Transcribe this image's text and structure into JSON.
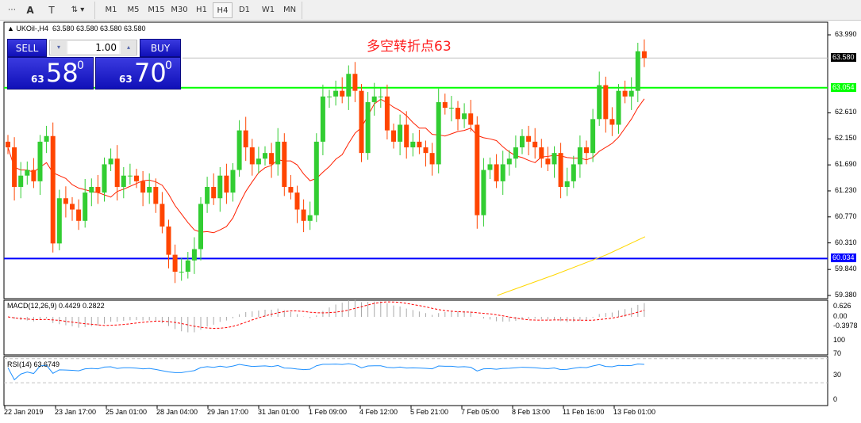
{
  "toolbar": {
    "tools": [
      "fibo-fan",
      "text",
      "text-label",
      "arrows"
    ],
    "timeframes": [
      "M1",
      "M5",
      "M15",
      "M30",
      "H1",
      "H4",
      "D1",
      "W1",
      "MN"
    ],
    "active": "H4"
  },
  "chart_header": {
    "symbol": "UKOil-,H4",
    "ohlc": "63.580 63.580 63.580 63.580"
  },
  "deal": {
    "sell_label": "SELL",
    "buy_label": "BUY",
    "volume": "1.00",
    "sell_big": "63",
    "sell_main": "58",
    "sell_sup": "0",
    "buy_big": "63",
    "buy_main": "70",
    "buy_sup": "0"
  },
  "annotation": "多空转折点63",
  "colors": {
    "bull": "#32cd32",
    "bear": "#ff4500",
    "ma": "#ff2000",
    "ma_long": "#ffd700",
    "support": "#0000ff",
    "resistance": "#00ff00",
    "rsi": "#1e90ff",
    "macd_signal": "#ff0000"
  },
  "price_axis": {
    "ticks": [
      "63.990",
      "62.610",
      "62.150",
      "61.690",
      "61.230",
      "60.770",
      "60.310",
      "59.840",
      "59.380"
    ],
    "current": "63.580",
    "resistance": "63.054",
    "support": "60.034"
  },
  "macd": {
    "label": "MACD(12,26,9) 0.4429 0.2822",
    "ticks": [
      "0.626",
      "0.00",
      "-0.3978"
    ]
  },
  "rsi": {
    "label": "RSI(14) 63.6749",
    "ticks": [
      "100",
      "70",
      "30",
      "0"
    ]
  },
  "time_axis": [
    "22 Jan 2019",
    "23 Jan 17:00",
    "25 Jan 01:00",
    "28 Jan 04:00",
    "29 Jan 17:00",
    "31 Jan 01:00",
    "1 Feb 09:00",
    "4 Feb 12:00",
    "5 Feb 21:00",
    "7 Feb 05:00",
    "8 Feb 13:00",
    "11 Feb 16:00",
    "13 Feb 01:00"
  ],
  "chart_data": {
    "type": "candlestick",
    "timeframe": "H4",
    "ylim": [
      59.38,
      63.99
    ],
    "closes": [
      62.0,
      61.3,
      61.5,
      61.6,
      61.4,
      62.1,
      62.2,
      60.3,
      61.1,
      61.0,
      60.9,
      60.7,
      61.2,
      61.3,
      61.2,
      61.7,
      61.8,
      61.3,
      61.5,
      61.5,
      61.4,
      61.2,
      61.3,
      61.0,
      60.6,
      60.1,
      59.8,
      59.8,
      60.0,
      60.2,
      61.0,
      61.3,
      61.1,
      61.5,
      61.2,
      61.6,
      62.3,
      62.0,
      61.7,
      61.8,
      61.9,
      61.7,
      62.1,
      61.3,
      61.2,
      60.9,
      60.7,
      60.8,
      62.1,
      62.9,
      62.9,
      63.0,
      62.9,
      63.3,
      63.0,
      61.9,
      62.8,
      62.9,
      62.9,
      62.3,
      62.1,
      62.4,
      62.0,
      62.1,
      62.0,
      61.9,
      61.7,
      62.8,
      62.7,
      62.7,
      62.5,
      62.6,
      62.4,
      60.8,
      61.6,
      61.7,
      61.4,
      61.7,
      61.8,
      62.0,
      62.2,
      62.1,
      62.0,
      61.8,
      61.7,
      61.9,
      61.3,
      61.4,
      61.7,
      62.0,
      61.9,
      62.5,
      63.1,
      62.5,
      62.4,
      63.0,
      62.9,
      63.0,
      63.7,
      63.58
    ],
    "ma_long": [
      [
        77,
        59.38
      ],
      [
        86,
        59.75
      ],
      [
        94,
        60.1
      ],
      [
        100,
        60.42
      ]
    ],
    "hlines": [
      63.58,
      63.054,
      60.034
    ]
  }
}
